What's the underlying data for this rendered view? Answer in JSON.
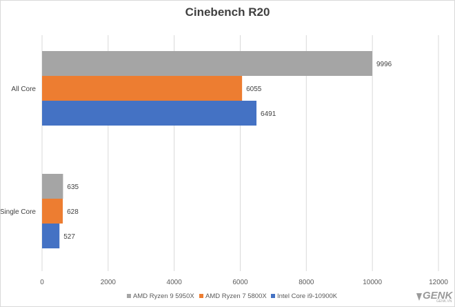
{
  "chart_data": {
    "type": "bar",
    "orientation": "horizontal",
    "title": "Cinebench R20",
    "categories": [
      "All Core",
      "Single Core"
    ],
    "series": [
      {
        "name": "AMD Ryzen 9 5950X",
        "color": "#a5a5a5",
        "values": [
          9996,
          635
        ]
      },
      {
        "name": "AMD Ryzen 7 5800X",
        "color": "#ed7d31",
        "values": [
          6055,
          628
        ]
      },
      {
        "name": "Intel Core i9-10900K",
        "color": "#4472c4",
        "values": [
          6491,
          527
        ]
      }
    ],
    "xlim": [
      0,
      12000
    ],
    "xticks": [
      "0",
      "2000",
      "4000",
      "6000",
      "8000",
      "10000",
      "12000"
    ],
    "grid": true,
    "legend_position": "bottom"
  },
  "watermark": {
    "text": "GENK",
    "sub": "GENK.VN",
    "icon": "genk-logo-icon"
  }
}
